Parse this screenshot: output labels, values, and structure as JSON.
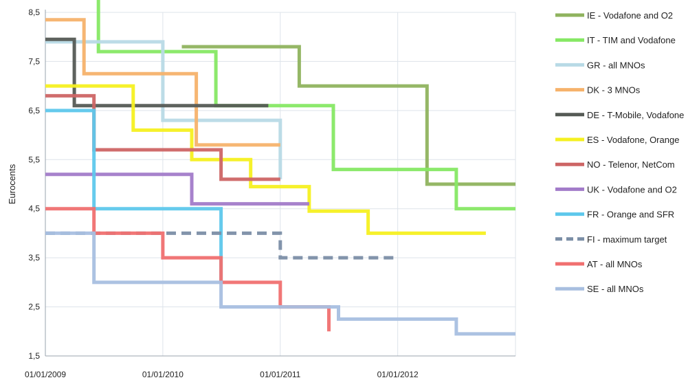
{
  "chart_data": {
    "type": "line",
    "title": "",
    "xlabel": "",
    "ylabel": "Eurocents",
    "ylim": [
      1.5,
      8.5
    ],
    "xlim": [
      "2009-01-01",
      "2013-01-01"
    ],
    "y_ticks": [
      "1,5",
      "2,5",
      "3,5",
      "4,5",
      "5,5",
      "6,5",
      "7,5",
      "8,5"
    ],
    "x_ticks": [
      "01/01/2009",
      "01/01/2010",
      "01/01/2011",
      "01/01/2012"
    ],
    "grid": true,
    "legend_position": "right",
    "series": [
      {
        "name": "IE - Vodafone and O2",
        "color": "#8fb35e",
        "dash": false,
        "points": [
          [
            "2010-03-01",
            7.8
          ],
          [
            "2011-03-01",
            7.8
          ],
          [
            "2011-03-01",
            7.0
          ],
          [
            "2012-04-01",
            7.0
          ],
          [
            "2012-04-01",
            5.0
          ],
          [
            "2013-01-01",
            5.0
          ]
        ]
      },
      {
        "name": "IT - TIM and Vodafone",
        "color": "#86e864",
        "dash": false,
        "points": [
          [
            "2009-06-15",
            8.8
          ],
          [
            "2009-06-15",
            7.7
          ],
          [
            "2010-06-15",
            7.7
          ],
          [
            "2010-06-15",
            6.6
          ],
          [
            "2011-06-15",
            6.6
          ],
          [
            "2011-06-15",
            5.3
          ],
          [
            "2012-07-01",
            5.3
          ],
          [
            "2012-07-01",
            4.5
          ],
          [
            "2013-01-01",
            4.5
          ]
        ]
      },
      {
        "name": "GR - all MNOs",
        "color": "#b8dae6",
        "dash": false,
        "points": [
          [
            "2009-01-01",
            7.9
          ],
          [
            "2010-01-01",
            7.9
          ],
          [
            "2010-01-01",
            6.3
          ],
          [
            "2011-01-01",
            6.3
          ],
          [
            "2011-01-01",
            5.1
          ]
        ]
      },
      {
        "name": "DK - 3 MNOs",
        "color": "#f6b26b",
        "dash": false,
        "points": [
          [
            "2009-01-01",
            8.35
          ],
          [
            "2009-05-01",
            8.35
          ],
          [
            "2009-05-01",
            7.25
          ],
          [
            "2010-04-15",
            7.25
          ],
          [
            "2010-04-15",
            5.8
          ],
          [
            "2011-01-01",
            5.8
          ]
        ]
      },
      {
        "name": "DE - T-Mobile, Vodafone",
        "color": "#555a55",
        "dash": false,
        "points": [
          [
            "2009-01-01",
            7.95
          ],
          [
            "2009-04-01",
            7.95
          ],
          [
            "2009-04-01",
            6.6
          ],
          [
            "2010-11-25",
            6.6
          ]
        ]
      },
      {
        "name": "ES - Vodafone, Orange",
        "color": "#f5f020",
        "dash": false,
        "points": [
          [
            "2009-01-01",
            7.0
          ],
          [
            "2009-10-01",
            7.0
          ],
          [
            "2009-10-01",
            6.1
          ],
          [
            "2010-04-01",
            6.1
          ],
          [
            "2010-04-01",
            5.5
          ],
          [
            "2010-10-01",
            5.5
          ],
          [
            "2010-10-01",
            4.95
          ],
          [
            "2011-04-01",
            4.95
          ],
          [
            "2011-04-01",
            4.45
          ],
          [
            "2011-10-01",
            4.45
          ],
          [
            "2011-10-01",
            4.0
          ],
          [
            "2012-10-01",
            4.0
          ]
        ]
      },
      {
        "name": "NO - Telenor, NetCom",
        "color": "#cd6565",
        "dash": false,
        "points": [
          [
            "2009-01-01",
            6.8
          ],
          [
            "2009-06-01",
            6.8
          ],
          [
            "2009-06-01",
            5.7
          ],
          [
            "2010-07-01",
            5.7
          ],
          [
            "2010-07-01",
            5.1
          ],
          [
            "2011-01-01",
            5.1
          ]
        ]
      },
      {
        "name": "UK - Vodafone and O2",
        "color": "#a27bc9",
        "dash": false,
        "points": [
          [
            "2009-01-01",
            5.2
          ],
          [
            "2010-04-01",
            5.2
          ],
          [
            "2010-04-01",
            4.6
          ],
          [
            "2011-04-01",
            4.6
          ]
        ]
      },
      {
        "name": "FR - Orange and SFR",
        "color": "#5ec8ec",
        "dash": false,
        "points": [
          [
            "2009-01-01",
            6.5
          ],
          [
            "2009-06-01",
            6.5
          ],
          [
            "2009-06-01",
            4.5
          ],
          [
            "2010-07-01",
            4.5
          ],
          [
            "2010-07-01",
            3.0
          ]
        ]
      },
      {
        "name": "FI - maximum target",
        "color": "#7b8ea6",
        "dash": true,
        "points": [
          [
            "2009-01-01",
            4.0
          ],
          [
            "2011-01-01",
            4.0
          ],
          [
            "2011-01-01",
            3.5
          ],
          [
            "2012-01-01",
            3.5
          ]
        ]
      },
      {
        "name": "AT - all MNOs",
        "color": "#f07070",
        "dash": false,
        "points": [
          [
            "2009-01-01",
            4.5
          ],
          [
            "2009-06-01",
            4.5
          ],
          [
            "2009-06-01",
            4.0
          ],
          [
            "2010-01-01",
            4.0
          ],
          [
            "2010-01-01",
            3.5
          ],
          [
            "2010-07-01",
            3.5
          ],
          [
            "2010-07-01",
            3.0
          ],
          [
            "2011-01-01",
            3.0
          ],
          [
            "2011-01-01",
            2.5
          ],
          [
            "2011-06-01",
            2.5
          ],
          [
            "2011-06-01",
            2.0
          ]
        ]
      },
      {
        "name": "SE - all MNOs",
        "color": "#a8bfe0",
        "dash": false,
        "points": [
          [
            "2009-01-01",
            4.0
          ],
          [
            "2009-06-01",
            4.0
          ],
          [
            "2009-06-01",
            3.0
          ],
          [
            "2010-07-01",
            3.0
          ],
          [
            "2010-07-01",
            2.5
          ],
          [
            "2011-07-01",
            2.5
          ],
          [
            "2011-07-01",
            2.25
          ],
          [
            "2012-07-01",
            2.25
          ],
          [
            "2012-07-01",
            1.95
          ],
          [
            "2013-01-01",
            1.95
          ]
        ]
      }
    ]
  }
}
